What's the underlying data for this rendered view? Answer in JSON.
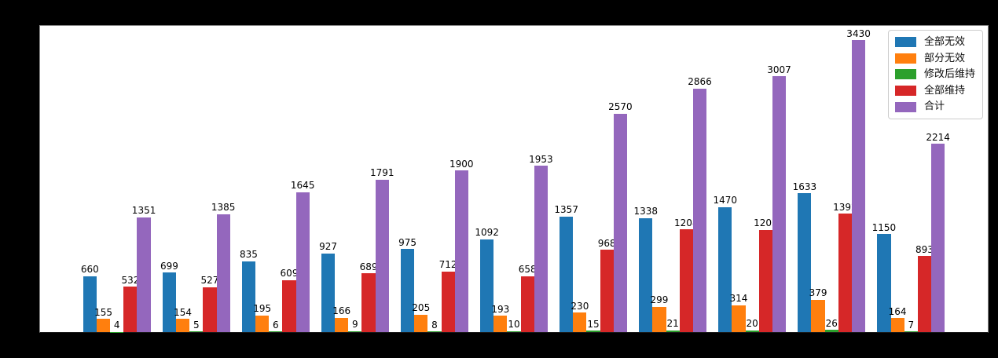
{
  "figure": {
    "background_color": "#000000",
    "plot_background_color": "#ffffff",
    "title": ""
  },
  "chart_data": {
    "type": "bar",
    "title": "",
    "xlabel": "",
    "ylabel": "",
    "grid": false,
    "bar_value_labels": true,
    "legend_position": "upper right",
    "n_groups": 11,
    "categories": [
      "",
      "",
      "",
      "",
      "",
      "",
      "",
      "",
      "",
      "",
      ""
    ],
    "ylim": [
      0,
      3600
    ],
    "series": [
      {
        "name": "全部无效",
        "color": "#1f77b4",
        "values": [
          660,
          699,
          835,
          927,
          975,
          1092,
          1357,
          1338,
          1470,
          1633,
          1150
        ]
      },
      {
        "name": "部分无效",
        "color": "#ff7f0e",
        "values": [
          155,
          154,
          195,
          166,
          205,
          193,
          230,
          299,
          314,
          379,
          164
        ]
      },
      {
        "name": "修改后维持",
        "color": "#2ca02c",
        "values": [
          4,
          5,
          6,
          9,
          8,
          10,
          15,
          21,
          20,
          26,
          7
        ]
      },
      {
        "name": "全部维持",
        "color": "#d62728",
        "values": [
          532,
          527,
          609,
          689,
          712,
          658,
          968,
          1208,
          1203,
          1392,
          893
        ]
      },
      {
        "name": "合计",
        "color": "#9467bd",
        "values": [
          1351,
          1385,
          1645,
          1791,
          1900,
          1953,
          2570,
          2866,
          3007,
          3430,
          2214
        ]
      }
    ]
  }
}
